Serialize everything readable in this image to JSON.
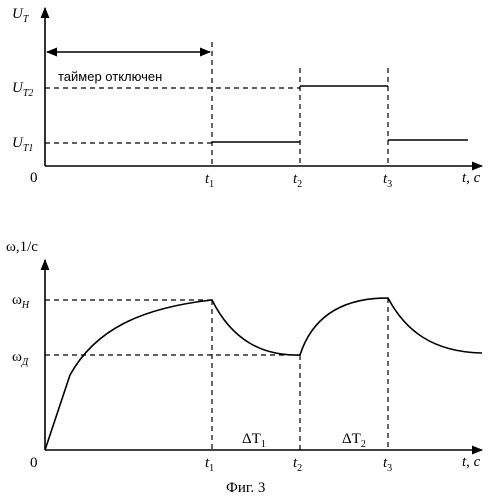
{
  "figure": {
    "caption": "Фиг. 3",
    "top": {
      "y_axis_label": "U",
      "y_axis_sub": "T",
      "x_axis_label": "t, c",
      "origin": "0",
      "levels": [
        {
          "label": "U",
          "sub": "T2"
        },
        {
          "label": "U",
          "sub": "T1"
        }
      ],
      "annotation": "таймер отключен",
      "ticks": [
        {
          "label": "t",
          "sub": "1"
        },
        {
          "label": "t",
          "sub": "2"
        },
        {
          "label": "t",
          "sub": "3"
        }
      ]
    },
    "bottom": {
      "y_axis_label": "ω,1/c",
      "x_axis_label": "t, c",
      "origin": "0",
      "levels": [
        {
          "label": "ω",
          "sub": "H"
        },
        {
          "label": "ω",
          "sub": "Д"
        }
      ],
      "intervals": [
        {
          "label": "ΔT",
          "sub": "1"
        },
        {
          "label": "ΔT",
          "sub": "2"
        }
      ],
      "ticks": [
        {
          "label": "t",
          "sub": "1"
        },
        {
          "label": "t",
          "sub": "2"
        },
        {
          "label": "t",
          "sub": "3"
        }
      ]
    }
  }
}
